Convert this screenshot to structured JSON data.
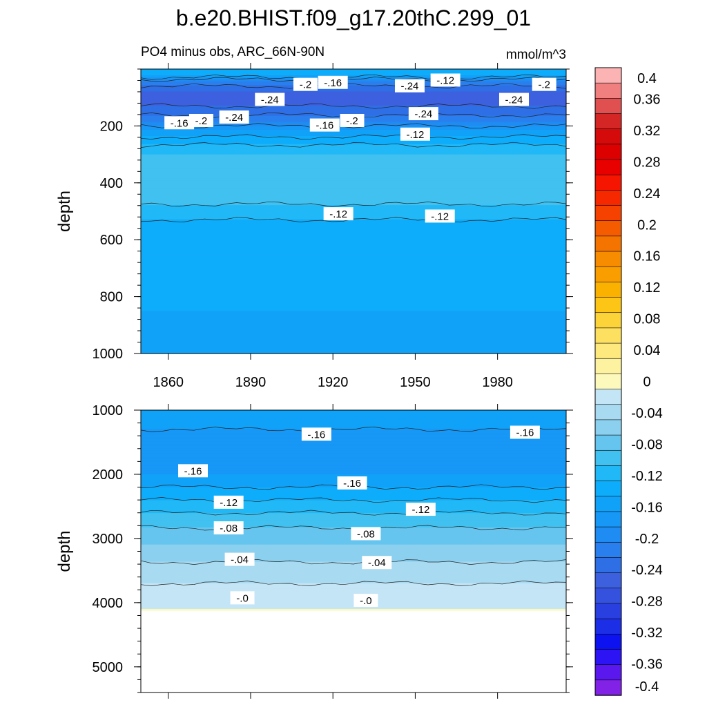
{
  "figure": {
    "title": "b.e20.BHIST.f09_g17.20thC.299_01",
    "subtitle_left": "PO4 minus obs, ARC_66N-90N",
    "subtitle_right": "mmol/m^3"
  },
  "colors": {
    "levels": [
      -0.4,
      -0.38,
      -0.36,
      -0.34,
      -0.32,
      -0.3,
      -0.28,
      -0.26,
      -0.24,
      -0.22,
      -0.2,
      -0.18,
      -0.16,
      -0.14,
      -0.12,
      -0.1,
      -0.08,
      -0.06,
      -0.04,
      -0.02,
      0.0,
      0.02,
      0.04,
      0.06,
      0.08,
      0.1,
      0.12,
      0.14,
      0.16,
      0.18,
      0.2,
      0.22,
      0.24,
      0.26,
      0.28,
      0.3,
      0.32,
      0.34,
      0.36,
      0.38,
      0.4
    ],
    "fills": [
      "#8122e6",
      "#5a18ee",
      "#2c14f5",
      "#0c12f0",
      "#1c2ee6",
      "#2a3fe0",
      "#3552de",
      "#3d60df",
      "#2e6fe6",
      "#2a7fee",
      "#1e8cf2",
      "#1797f6",
      "#10a2f8",
      "#0eadfb",
      "#20b8f6",
      "#40c1f0",
      "#66c5ef",
      "#8cd0ef",
      "#a8daf1",
      "#c4e5f6",
      "#fdf9bd",
      "#fdf2a0",
      "#fde97e",
      "#fde060",
      "#fdd33a",
      "#fdc515",
      "#fbb100",
      "#fa9e00",
      "#f88c00",
      "#f57400",
      "#f55c00",
      "#f54200",
      "#f62800",
      "#f51500",
      "#e80000",
      "#dc0000",
      "#d50a0a",
      "#d52626",
      "#e05050",
      "#f07f7f",
      "#fcb3b3"
    ]
  },
  "chart_data": {
    "type": "heatmap",
    "title": "b.e20.BHIST.f09_g17.20thC.299_01",
    "subtitle": "PO4 minus obs, ARC_66N-90N",
    "units": "mmol/m^3",
    "x": {
      "label": "",
      "range": [
        1850,
        2005
      ],
      "ticks": [
        1860,
        1890,
        1920,
        1950,
        1980
      ]
    },
    "panels": [
      {
        "name": "upper",
        "ylabel": "depth",
        "ylim": [
          0,
          1000
        ],
        "yinverted": true,
        "yticks": [
          200,
          400,
          600,
          800,
          1000
        ],
        "depth_profile": [
          [
            20,
            -0.14
          ],
          [
            45,
            -0.2
          ],
          [
            75,
            -0.24
          ],
          [
            110,
            -0.25
          ],
          [
            150,
            -0.23
          ],
          [
            185,
            -0.2
          ],
          [
            215,
            -0.16
          ],
          [
            250,
            -0.13
          ],
          [
            300,
            -0.1
          ],
          [
            360,
            -0.09
          ],
          [
            400,
            -0.08
          ],
          [
            450,
            -0.09
          ],
          [
            500,
            -0.11
          ],
          [
            560,
            -0.13
          ],
          [
            700,
            -0.14
          ],
          [
            850,
            -0.14
          ],
          [
            1000,
            -0.15
          ]
        ],
        "contour_labels": [
          {
            "x": 1864,
            "depth": 190,
            "text": "-.16"
          },
          {
            "x": 1872,
            "depth": 182,
            "text": "-.2"
          },
          {
            "x": 1884,
            "depth": 170,
            "text": "-.24"
          },
          {
            "x": 1897,
            "depth": 108,
            "text": "-.24"
          },
          {
            "x": 1910,
            "depth": 55,
            "text": "-.2"
          },
          {
            "x": 1920,
            "depth": 48,
            "text": "-.16"
          },
          {
            "x": 1917,
            "depth": 198,
            "text": "-.16"
          },
          {
            "x": 1927,
            "depth": 182,
            "text": "-.2"
          },
          {
            "x": 1922,
            "depth": 510,
            "text": "-.12"
          },
          {
            "x": 1948,
            "depth": 60,
            "text": "-.24"
          },
          {
            "x": 1953,
            "depth": 158,
            "text": "-.24"
          },
          {
            "x": 1950,
            "depth": 230,
            "text": "-.12"
          },
          {
            "x": 1961,
            "depth": 40,
            "text": "-.12"
          },
          {
            "x": 1959,
            "depth": 518,
            "text": "-.12"
          },
          {
            "x": 1986,
            "depth": 108,
            "text": "-.24"
          },
          {
            "x": 1997,
            "depth": 55,
            "text": "-.2"
          }
        ]
      },
      {
        "name": "lower",
        "ylabel": "depth",
        "ylim": [
          1000,
          5400
        ],
        "yinverted": true,
        "yticks": [
          1000,
          2000,
          3000,
          4000,
          5000
        ],
        "bottom_of_data": 4120,
        "depth_profile": [
          [
            1000,
            -0.15
          ],
          [
            1600,
            -0.17
          ],
          [
            2000,
            -0.16
          ],
          [
            2300,
            -0.13
          ],
          [
            2700,
            -0.09
          ],
          [
            3100,
            -0.06
          ],
          [
            3500,
            -0.03
          ],
          [
            3900,
            -0.01
          ],
          [
            4100,
            0.0
          ]
        ],
        "contour_labels": [
          {
            "x": 1914,
            "depth": 1380,
            "text": "-.16"
          },
          {
            "x": 1990,
            "depth": 1350,
            "text": "-.16"
          },
          {
            "x": 1869,
            "depth": 1950,
            "text": "-.16"
          },
          {
            "x": 1927,
            "depth": 2140,
            "text": "-.16"
          },
          {
            "x": 1882,
            "depth": 2440,
            "text": "-.12"
          },
          {
            "x": 1952,
            "depth": 2550,
            "text": "-.12"
          },
          {
            "x": 1882,
            "depth": 2840,
            "text": "-.08"
          },
          {
            "x": 1932,
            "depth": 2930,
            "text": "-.08"
          },
          {
            "x": 1886,
            "depth": 3330,
            "text": "-.04"
          },
          {
            "x": 1936,
            "depth": 3380,
            "text": "-.04"
          },
          {
            "x": 1887,
            "depth": 3930,
            "text": "-.0"
          },
          {
            "x": 1932,
            "depth": 3970,
            "text": "-.0"
          }
        ]
      }
    ],
    "colorbar": {
      "labels": [
        "0.4",
        "0.36",
        "0.32",
        "0.28",
        "0.24",
        "0.2",
        "0.16",
        "0.12",
        "0.08",
        "0.04",
        "0",
        "-0.04",
        "-0.08",
        "-0.12",
        "-0.16",
        "-0.2",
        "-0.24",
        "-0.28",
        "-0.32",
        "-0.36",
        "-0.4"
      ],
      "min": -0.4,
      "max": 0.4,
      "step": 0.02
    }
  }
}
